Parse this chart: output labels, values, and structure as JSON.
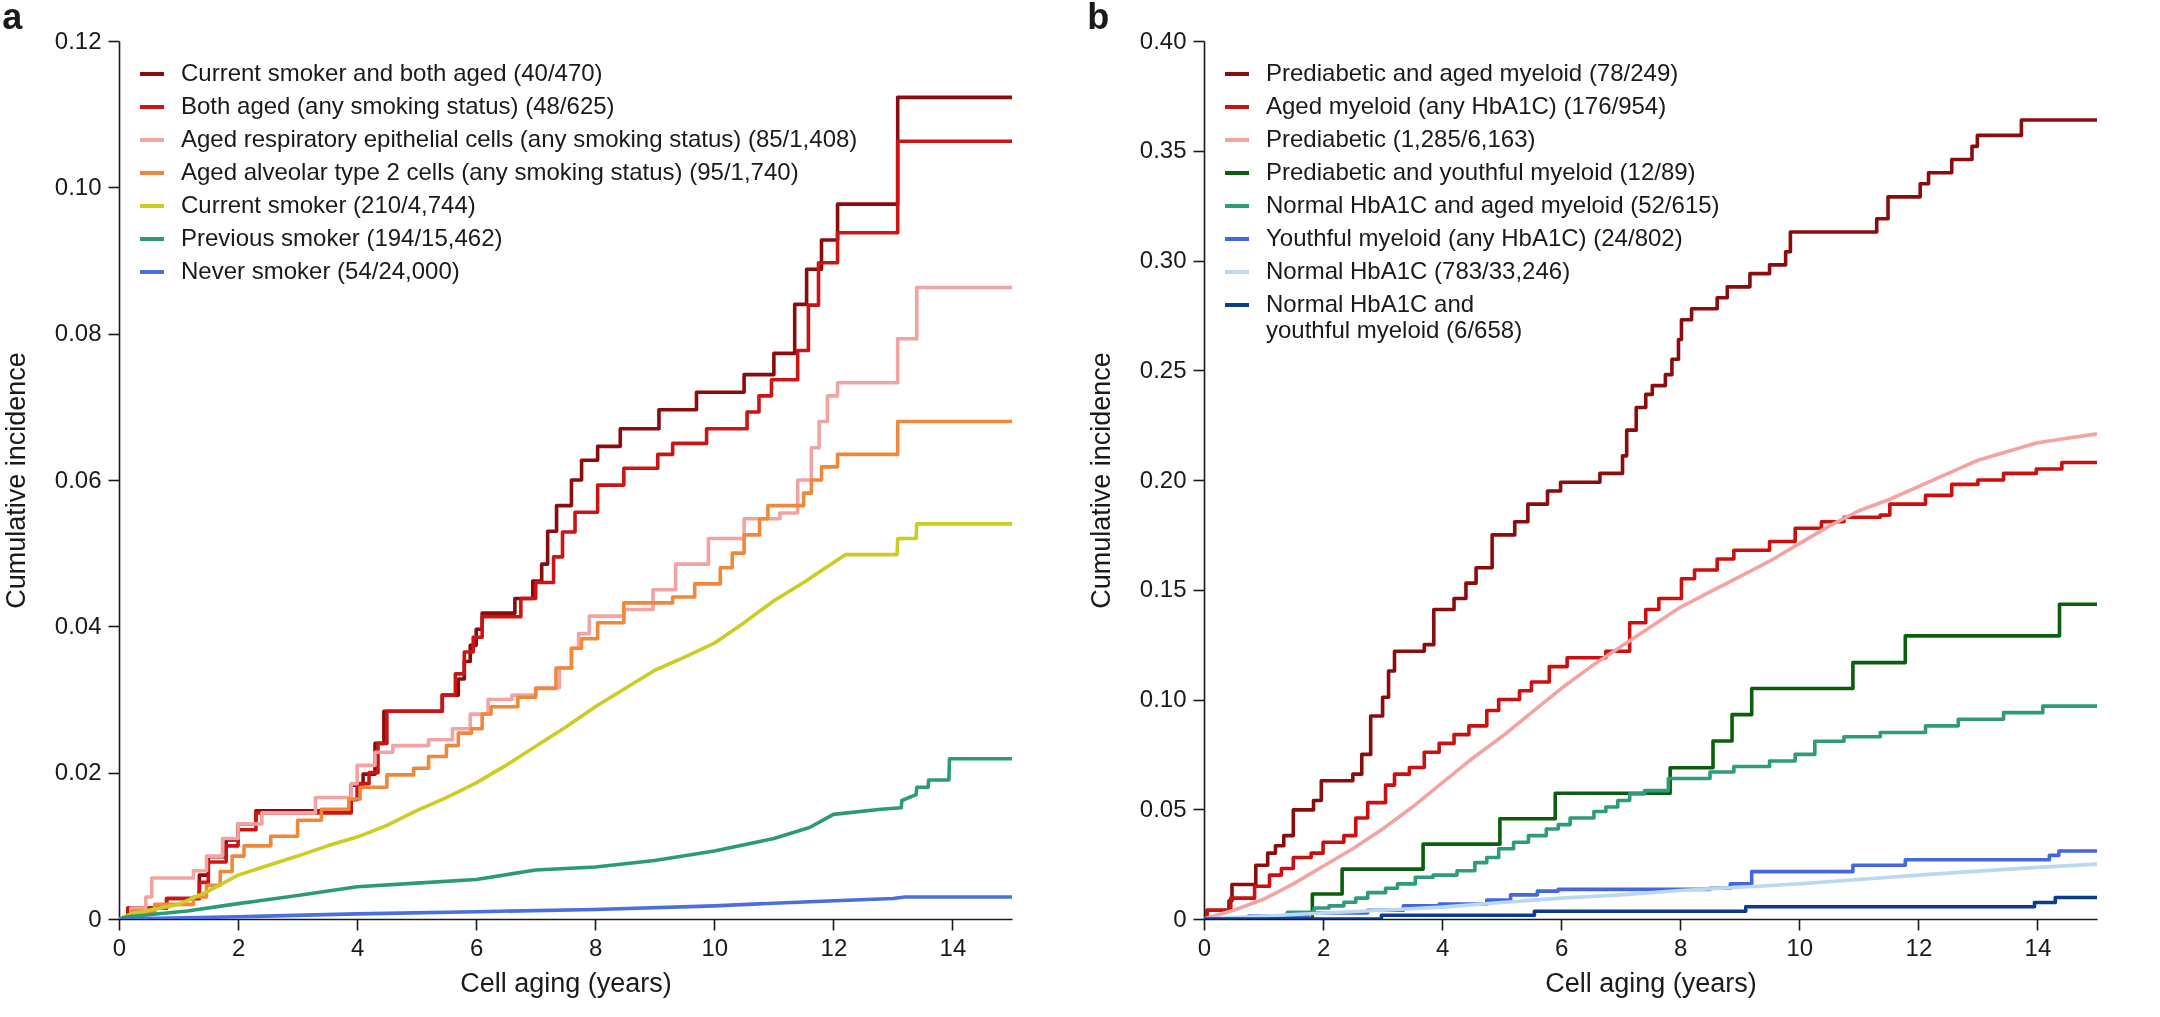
{
  "chart_data": [
    {
      "type": "step",
      "title": "a",
      "xlabel": "Cell aging (years)",
      "ylabel": "Cumulative incidence",
      "xlim": [
        0,
        15
      ],
      "xticks": [
        0,
        2,
        4,
        6,
        8,
        10,
        12,
        14
      ],
      "ylim": [
        0,
        0.12
      ],
      "yticks": [
        0,
        0.02,
        0.04,
        0.06,
        0.08,
        {
          "value": 0.1,
          "label": "0.10"
        },
        0.12
      ],
      "legend": "top left",
      "series": [
        {
          "name": "Current smoker and both aged (40/470)",
          "color": "#8c0c0c",
          "x": [
            0,
            0.15,
            0.8,
            1.35,
            1.5,
            1.8,
            2.0,
            2.3,
            3.9,
            4.1,
            4.3,
            4.45,
            5.43,
            5.7,
            5.8,
            5.9,
            6.0,
            6.1,
            6.65,
            6.95,
            7.1,
            7.2,
            7.35,
            7.6,
            7.77,
            8.04,
            8.42,
            9.07,
            9.7,
            10.5,
            11.0,
            11.35,
            11.55,
            11.8,
            12.07,
            13.08,
            15
          ],
          "values": [
            0,
            0.0015,
            0.0028,
            0.006,
            0.0085,
            0.0108,
            0.013,
            0.0148,
            0.0183,
            0.0198,
            0.024,
            0.0284,
            0.0306,
            0.0328,
            0.0352,
            0.0374,
            0.0396,
            0.0418,
            0.0438,
            0.0462,
            0.0485,
            0.053,
            0.0565,
            0.06,
            0.0627,
            0.0646,
            0.067,
            0.0696,
            0.072,
            0.0744,
            0.0773,
            0.084,
            0.0888,
            0.0928,
            0.0977,
            0.1123,
            0.1123
          ]
        },
        {
          "name": "Both aged (any smoking status) (48/625)",
          "color": "#cc1414",
          "x": [
            0,
            0.15,
            0.8,
            1.35,
            1.5,
            1.8,
            2.0,
            2.3,
            3.9,
            4.0,
            4.2,
            4.35,
            4.5,
            5.43,
            5.65,
            5.8,
            5.95,
            6.1,
            6.75,
            7.0,
            7.3,
            7.45,
            7.66,
            8.04,
            8.48,
            9.05,
            9.3,
            9.87,
            10.55,
            10.75,
            10.96,
            11.4,
            11.58,
            11.75,
            12.07,
            13.08,
            15
          ],
          "values": [
            0,
            0.0015,
            0.0028,
            0.005,
            0.0078,
            0.01,
            0.0122,
            0.0145,
            0.0163,
            0.0185,
            0.02,
            0.024,
            0.0284,
            0.0306,
            0.0335,
            0.0365,
            0.0385,
            0.0413,
            0.0438,
            0.046,
            0.0495,
            0.0529,
            0.0556,
            0.0593,
            0.0616,
            0.0635,
            0.065,
            0.067,
            0.0693,
            0.0715,
            0.0737,
            0.0777,
            0.0839,
            0.0897,
            0.0938,
            0.1063,
            0.1063
          ]
        },
        {
          "name": "Aged respiratory epithelial cells (any smoking status) (85/1,408)",
          "color": "#f4a3a3",
          "x": [
            0,
            0.2,
            0.45,
            0.55,
            1.25,
            1.47,
            1.74,
            2.0,
            2.4,
            3.3,
            3.9,
            4.0,
            4.3,
            4.6,
            5.2,
            5.6,
            5.9,
            6.2,
            6.6,
            7.0,
            7.4,
            7.6,
            7.72,
            7.9,
            8.48,
            8.97,
            9.35,
            9.9,
            10.5,
            11.1,
            11.4,
            11.63,
            11.76,
            11.9,
            12.07,
            13.08,
            13.4,
            15
          ],
          "values": [
            0,
            0.0015,
            0.003,
            0.0056,
            0.0066,
            0.0086,
            0.011,
            0.013,
            0.0145,
            0.0166,
            0.0185,
            0.021,
            0.0228,
            0.0237,
            0.0245,
            0.026,
            0.028,
            0.03,
            0.0306,
            0.0316,
            0.0343,
            0.037,
            0.039,
            0.0414,
            0.0423,
            0.045,
            0.0485,
            0.052,
            0.0547,
            0.0555,
            0.06,
            0.0644,
            0.068,
            0.0715,
            0.0733,
            0.0793,
            0.0863,
            0.0863
          ]
        },
        {
          "name": "Aged alveolar type 2 cells (any smoking status) (95/1,740)",
          "color": "#f0883c",
          "x": [
            0,
            0.2,
            0.6,
            1.25,
            1.47,
            1.7,
            1.9,
            2.1,
            2.55,
            3.0,
            3.4,
            3.86,
            4.05,
            4.5,
            4.95,
            5.2,
            5.5,
            5.7,
            5.92,
            6.1,
            6.25,
            6.7,
            7.0,
            7.34,
            7.6,
            7.77,
            8.04,
            8.48,
            9.3,
            9.67,
            10.1,
            10.3,
            10.5,
            10.76,
            10.9,
            11.5,
            11.63,
            11.8,
            12.07,
            13.08,
            15
          ],
          "values": [
            0,
            0.001,
            0.002,
            0.003,
            0.0046,
            0.0065,
            0.0086,
            0.01,
            0.0113,
            0.0135,
            0.015,
            0.0164,
            0.018,
            0.0197,
            0.0206,
            0.0222,
            0.0237,
            0.0254,
            0.026,
            0.028,
            0.029,
            0.0303,
            0.0315,
            0.0343,
            0.037,
            0.0383,
            0.0405,
            0.0432,
            0.044,
            0.0458,
            0.048,
            0.05,
            0.0525,
            0.0547,
            0.0565,
            0.0582,
            0.06,
            0.0618,
            0.0635,
            0.068,
            0.068
          ]
        },
        {
          "name": "Current smoker (210/4,744)",
          "type": "line",
          "color": "#cccc22",
          "x": [
            0,
            0.2,
            1.0,
            1.5,
            2.0,
            2.5,
            3.0,
            3.5,
            4.0,
            4.5,
            5.0,
            5.5,
            6.0,
            6.5,
            7.0,
            7.5,
            8.0,
            8.5,
            9.0,
            9.5,
            10.0,
            10.5,
            11.0,
            11.5,
            11.87,
            12.2,
            13.07,
            13.08,
            13.39,
            13.4,
            15
          ],
          "values": [
            0,
            0.0007,
            0.002,
            0.0038,
            0.006,
            0.0073,
            0.0086,
            0.01,
            0.0112,
            0.0128,
            0.0148,
            0.0166,
            0.0186,
            0.021,
            0.0236,
            0.0262,
            0.029,
            0.0315,
            0.034,
            0.0358,
            0.0377,
            0.0405,
            0.0435,
            0.046,
            0.048,
            0.0498,
            0.0498,
            0.052,
            0.052,
            0.054,
            0.054
          ]
        },
        {
          "name": "Previous smoker (194/15,462)",
          "type": "line",
          "color": "#2a9a78",
          "x": [
            0,
            0.15,
            1.15,
            2,
            3,
            4,
            5,
            6,
            7,
            8,
            9,
            10,
            11,
            11.6,
            12,
            12.8,
            13.14,
            13.15,
            13.39,
            13.4,
            13.59,
            13.6,
            13.94,
            13.95,
            15
          ],
          "values": [
            0,
            0.0003,
            0.0011,
            0.0021,
            0.0032,
            0.0044,
            0.0049,
            0.0054,
            0.0067,
            0.0071,
            0.008,
            0.0093,
            0.011,
            0.0125,
            0.0143,
            0.015,
            0.0152,
            0.0162,
            0.017,
            0.018,
            0.018,
            0.019,
            0.019,
            0.0219,
            0.0219
          ]
        },
        {
          "name": "Never smoker (54/24,000)",
          "type": "line",
          "color": "#4a6fe0",
          "x": [
            0,
            2,
            4,
            6,
            8,
            10,
            11.7,
            13.0,
            13.2,
            15
          ],
          "values": [
            0,
            0.0003,
            0.0007,
            0.001,
            0.0013,
            0.0018,
            0.0024,
            0.0028,
            0.003,
            0.003
          ]
        }
      ]
    },
    {
      "type": "step",
      "title": "b",
      "xlabel": "Cell aging (years)",
      "ylabel": "Cumulative incidence",
      "xlim": [
        0,
        15
      ],
      "xticks": [
        0,
        2,
        4,
        6,
        8,
        10,
        12,
        14
      ],
      "ylim": [
        0,
        0.4
      ],
      "yticks": [
        0,
        0.05,
        {
          "value": 0.1,
          "label": "0.10"
        },
        0.15,
        {
          "value": 0.2,
          "label": "0.20"
        },
        0.25,
        {
          "value": 0.3,
          "label": "0.30"
        },
        0.35,
        {
          "value": 0.4,
          "label": "0.40"
        }
      ],
      "legend": "top left",
      "series": [
        {
          "name": "Prediabetic and aged myeloid (78/249)",
          "color": "#8b0c0c",
          "x": [
            0,
            0.05,
            0.42,
            0.47,
            0.87,
            1.07,
            1.2,
            1.34,
            1.5,
            1.84,
            1.97,
            2.5,
            2.65,
            2.8,
            3.0,
            3.1,
            3.2,
            3.7,
            3.86,
            4.2,
            4.4,
            4.57,
            4.84,
            5.22,
            5.44,
            5.77,
            5.99,
            6.65,
            7.03,
            7.1,
            7.26,
            7.42,
            7.53,
            7.75,
            7.86,
            7.97,
            8.02,
            8.19,
            8.62,
            8.79,
            9.17,
            9.5,
            9.77,
            9.85,
            11.3,
            11.49,
            12.03,
            12.17,
            12.56,
            12.9,
            12.99,
            13.73,
            15
          ],
          "values": [
            0,
            0.004,
            0.0083,
            0.0157,
            0.0245,
            0.03,
            0.0334,
            0.038,
            0.0497,
            0.054,
            0.063,
            0.066,
            0.075,
            0.0925,
            0.101,
            0.113,
            0.122,
            0.125,
            0.141,
            0.146,
            0.153,
            0.16,
            0.175,
            0.181,
            0.189,
            0.195,
            0.199,
            0.203,
            0.211,
            0.2227,
            0.233,
            0.239,
            0.243,
            0.248,
            0.255,
            0.264,
            0.273,
            0.278,
            0.283,
            0.288,
            0.294,
            0.298,
            0.304,
            0.313,
            0.319,
            0.329,
            0.335,
            0.34,
            0.346,
            0.352,
            0.357,
            0.364,
            0.364
          ]
        },
        {
          "name": "Aged myeloid (any HbA1C) (176/954)",
          "color": "#cc1010",
          "x": [
            0,
            0.05,
            0.45,
            0.85,
            1.1,
            1.3,
            1.5,
            1.8,
            2.0,
            2.35,
            2.55,
            2.75,
            3.05,
            3.2,
            3.45,
            3.7,
            3.95,
            4.2,
            4.45,
            4.75,
            4.95,
            5.3,
            5.5,
            5.8,
            6.1,
            6.75,
            7.15,
            7.42,
            7.64,
            8.02,
            8.24,
            8.62,
            8.9,
            9.5,
            9.93,
            10.37,
            10.75,
            11.36,
            11.52,
            12.12,
            12.56,
            13.0,
            13.43,
            13.98,
            14.41,
            15
          ],
          "values": [
            0,
            0.004,
            0.0095,
            0.0149,
            0.02,
            0.023,
            0.028,
            0.03,
            0.035,
            0.038,
            0.046,
            0.053,
            0.061,
            0.066,
            0.069,
            0.076,
            0.08,
            0.084,
            0.088,
            0.095,
            0.1,
            0.104,
            0.108,
            0.115,
            0.119,
            0.122,
            0.135,
            0.141,
            0.146,
            0.155,
            0.159,
            0.164,
            0.168,
            0.172,
            0.178,
            0.181,
            0.183,
            0.184,
            0.189,
            0.193,
            0.198,
            0.2,
            0.203,
            0.205,
            0.208,
            0.208
          ]
        },
        {
          "name": "Prediabetic (1,285/6,163)",
          "type": "line",
          "color": "#f4a3a3",
          "x": [
            0,
            0.5,
            1.0,
            1.5,
            2.0,
            2.5,
            3.0,
            3.5,
            4.0,
            4.5,
            5.0,
            5.5,
            6.0,
            6.5,
            7.0,
            7.5,
            8.0,
            8.5,
            9.0,
            9.5,
            10.0,
            10.5,
            11.0,
            11.5,
            12.0,
            12.5,
            13.0,
            13.5,
            14.0,
            14.5,
            15
          ],
          "values": [
            0,
            0.004,
            0.009,
            0.016,
            0.024,
            0.032,
            0.041,
            0.051,
            0.062,
            0.073,
            0.083,
            0.094,
            0.105,
            0.115,
            0.124,
            0.133,
            0.142,
            0.149,
            0.156,
            0.163,
            0.171,
            0.179,
            0.186,
            0.191,
            0.197,
            0.203,
            0.209,
            0.213,
            0.217,
            0.219,
            0.221
          ]
        },
        {
          "name": "Prediabetic and youthful myeloid (12/89)",
          "color": "#0b5e0b",
          "x": [
            0,
            1.82,
            2.32,
            3.68,
            4.97,
            5.9,
            7.83,
            8.55,
            8.87,
            9.2,
            10.9,
            11.78,
            14.37,
            15
          ],
          "values": [
            0,
            0.0114,
            0.0227,
            0.0341,
            0.0457,
            0.0573,
            0.0689,
            0.0811,
            0.0931,
            0.105,
            0.1168,
            0.129,
            0.1434,
            0.1434
          ]
        },
        {
          "name": "Normal HbA1C and aged myeloid (52/615)",
          "color": "#2e9c7c",
          "x": [
            0,
            1.4,
            1.85,
            2.1,
            2.35,
            2.55,
            2.75,
            3.05,
            3.25,
            3.55,
            3.85,
            4.25,
            4.55,
            4.75,
            4.95,
            5.2,
            5.45,
            5.75,
            5.95,
            6.15,
            6.55,
            6.75,
            6.95,
            7.15,
            7.4,
            7.8,
            8.5,
            8.9,
            9.5,
            9.93,
            10.26,
            10.75,
            11.36,
            12.12,
            12.67,
            13.43,
            14.09,
            15
          ],
          "values": [
            0,
            0.003,
            0.005,
            0.006,
            0.0076,
            0.0095,
            0.012,
            0.014,
            0.016,
            0.019,
            0.02,
            0.022,
            0.0257,
            0.028,
            0.032,
            0.035,
            0.038,
            0.041,
            0.043,
            0.046,
            0.049,
            0.051,
            0.054,
            0.057,
            0.0585,
            0.064,
            0.067,
            0.0695,
            0.072,
            0.075,
            0.081,
            0.083,
            0.085,
            0.088,
            0.091,
            0.094,
            0.097,
            0.097
          ]
        },
        {
          "name": "Youthful myeloid (any HbA1C) (24/802)",
          "color": "#4466e0",
          "x": [
            0,
            0.75,
            1.75,
            2.75,
            3.35,
            3.95,
            4.75,
            5.15,
            5.6,
            5.95,
            8.5,
            8.84,
            9.2,
            10.9,
            11.78,
            14.2,
            14.36,
            15
          ],
          "values": [
            0,
            0.0014,
            0.0027,
            0.004,
            0.006,
            0.0068,
            0.0086,
            0.011,
            0.0127,
            0.0135,
            0.014,
            0.016,
            0.0216,
            0.0245,
            0.027,
            0.029,
            0.031,
            0.031
          ]
        },
        {
          "name": "Normal HbA1C (783/33,246)",
          "type": "line",
          "color": "#b9d9f0",
          "x": [
            0,
            1,
            2,
            3,
            4,
            5,
            6,
            7,
            8,
            9,
            10,
            11,
            12,
            13,
            14,
            15
          ],
          "values": [
            0,
            0.0013,
            0.0027,
            0.004,
            0.0054,
            0.0075,
            0.0095,
            0.011,
            0.013,
            0.0145,
            0.016,
            0.018,
            0.02,
            0.0218,
            0.0235,
            0.025
          ]
        },
        {
          "name": "Normal HbA1C and\nyouthful myeloid (6/658)",
          "color": "#0e3c8c",
          "x": [
            0,
            2.98,
            5.55,
            9.1,
            13.95,
            14.3,
            15
          ],
          "values": [
            0,
            0.0017,
            0.0035,
            0.0056,
            0.0075,
            0.0098,
            0.0098
          ]
        }
      ]
    }
  ]
}
